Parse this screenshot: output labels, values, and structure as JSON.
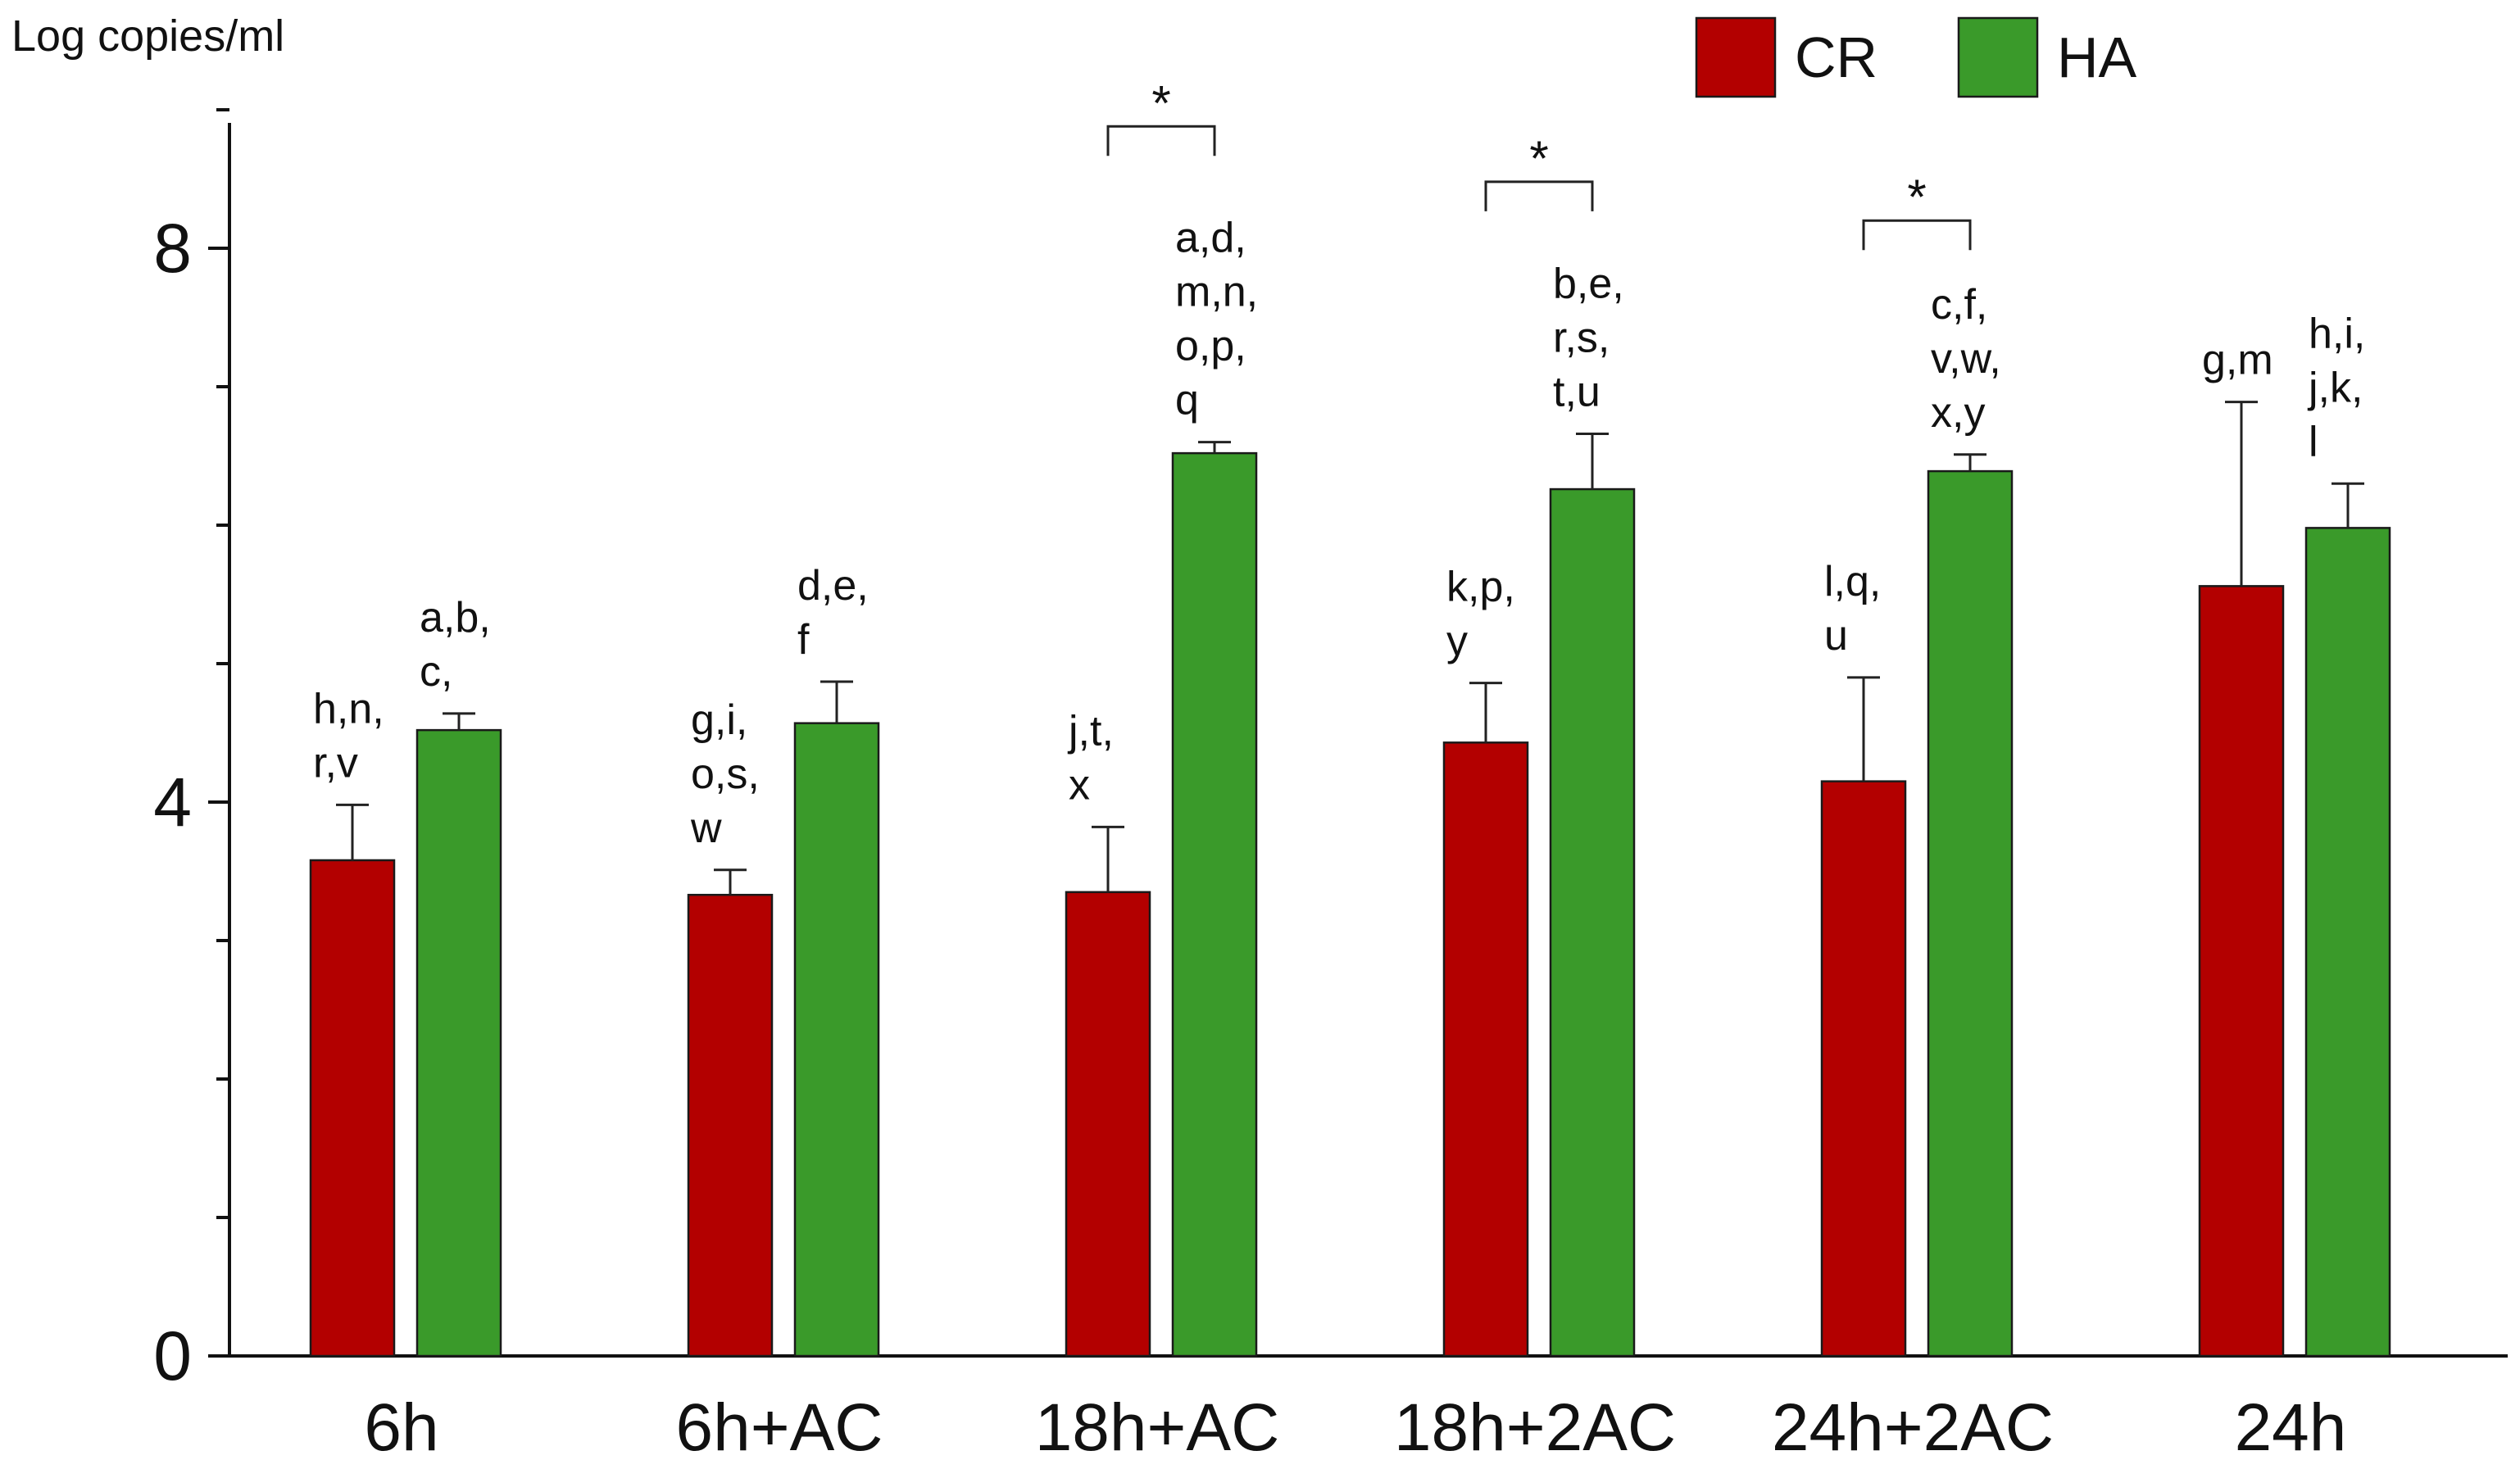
{
  "chart_data": {
    "type": "bar",
    "ylabel": "Log copies/ml",
    "ylim": [
      0,
      9
    ],
    "yticks": [
      0,
      4,
      8
    ],
    "categories": [
      "6h",
      "6h+AC",
      "18h+AC",
      "18h+2AC",
      "24h+2AC",
      "24h"
    ],
    "series": [
      {
        "name": "CR",
        "color": "#b30000",
        "values": [
          3.58,
          3.33,
          3.35,
          4.43,
          4.15,
          5.56
        ],
        "errors": [
          0.4,
          0.18,
          0.47,
          0.43,
          0.75,
          1.33
        ]
      },
      {
        "name": "HA",
        "color": "#3a9a2a",
        "values": [
          4.52,
          4.57,
          6.52,
          6.26,
          6.39,
          5.98
        ],
        "errors": [
          0.12,
          0.3,
          0.08,
          0.4,
          0.12,
          0.32
        ]
      }
    ],
    "annotations": [
      {
        "category": 0,
        "series": "CR",
        "lines": [
          "h,n,",
          "r,v"
        ]
      },
      {
        "category": 0,
        "series": "HA",
        "lines": [
          "a,b,",
          "c,"
        ]
      },
      {
        "category": 1,
        "series": "CR",
        "lines": [
          "g,i,",
          "o,s,",
          "w"
        ]
      },
      {
        "category": 1,
        "series": "HA",
        "lines": [
          "d,e,",
          "f"
        ]
      },
      {
        "category": 2,
        "series": "CR",
        "lines": [
          "j,t,",
          "x"
        ]
      },
      {
        "category": 2,
        "series": "HA",
        "lines": [
          "a,d,",
          "m,n,",
          "o,p,",
          "q"
        ]
      },
      {
        "category": 3,
        "series": "CR",
        "lines": [
          "k,p,",
          "y"
        ]
      },
      {
        "category": 3,
        "series": "HA",
        "lines": [
          "b,e,",
          "r,s,",
          "t,u"
        ]
      },
      {
        "category": 4,
        "series": "CR",
        "lines": [
          "l,q,",
          "u"
        ]
      },
      {
        "category": 4,
        "series": "HA",
        "lines": [
          "c,f,",
          "v,w,",
          "x,y"
        ]
      },
      {
        "category": 5,
        "series": "CR",
        "lines": [
          "g,m"
        ]
      },
      {
        "category": 5,
        "series": "HA",
        "lines": [
          "h,i,",
          "j,k,",
          "l"
        ]
      }
    ],
    "significance": [
      {
        "category": 2,
        "label": "*",
        "level": 8.88
      },
      {
        "category": 3,
        "label": "*",
        "level": 8.48
      },
      {
        "category": 4,
        "label": "*",
        "level": 8.2
      }
    ],
    "legend": {
      "position": "top-right",
      "entries": [
        "CR",
        "HA"
      ]
    }
  }
}
